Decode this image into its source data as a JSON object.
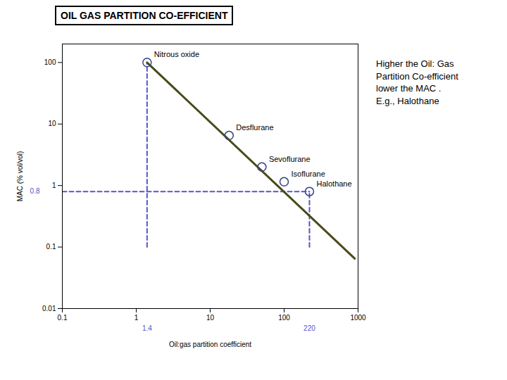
{
  "chart_data": {
    "type": "line",
    "title": "OIL GAS PARTITION CO-EFFICIENT",
    "x_label": "Oil:gas partition coefficient",
    "y_label": "MAC (% vol/vol)",
    "log": true,
    "grid": false,
    "xlim": [
      0.1,
      1000
    ],
    "ylim": [
      0.01,
      200
    ],
    "xticks": [
      0.1,
      1,
      10,
      100,
      1000
    ],
    "yticks": [
      0.01,
      0.1,
      1,
      10,
      100
    ],
    "x": [
      1.4,
      900
    ],
    "values": [
      100,
      0.065
    ],
    "color": "#4a4a1a",
    "reference_lines": {
      "color": "#5555cc",
      "line_style": "dashed",
      "segments": [
        {
          "x": [
            0.1,
            220
          ],
          "y": [
            0.8,
            0.8
          ]
        },
        {
          "x": [
            1.4,
            1.4
          ],
          "y": [
            0.1,
            100
          ]
        },
        {
          "x": [
            220,
            220
          ],
          "y": [
            0.1,
            0.8
          ]
        }
      ],
      "labels": [
        {
          "text": "0.8",
          "axis": "y",
          "value": 0.8
        },
        {
          "text": "1.4",
          "axis": "x",
          "value": 1.4
        },
        {
          "text": "220",
          "axis": "x",
          "value": 220
        }
      ]
    },
    "annotations": [
      {
        "text": "Nitrous oxide",
        "x": 1.4,
        "y": 100
      },
      {
        "text": "Desflurane",
        "x": 18,
        "y": 6.5
      },
      {
        "text": "Sevoflurane",
        "x": 50,
        "y": 2.0
      },
      {
        "text": "Isoflurane",
        "x": 100,
        "y": 1.15
      },
      {
        "text": "Halothane",
        "x": 220,
        "y": 0.8
      }
    ],
    "note_text": "Higher the Oil: Gas\nPartition Co-efficient\nlower the MAC .\nE.g., Halothane"
  }
}
